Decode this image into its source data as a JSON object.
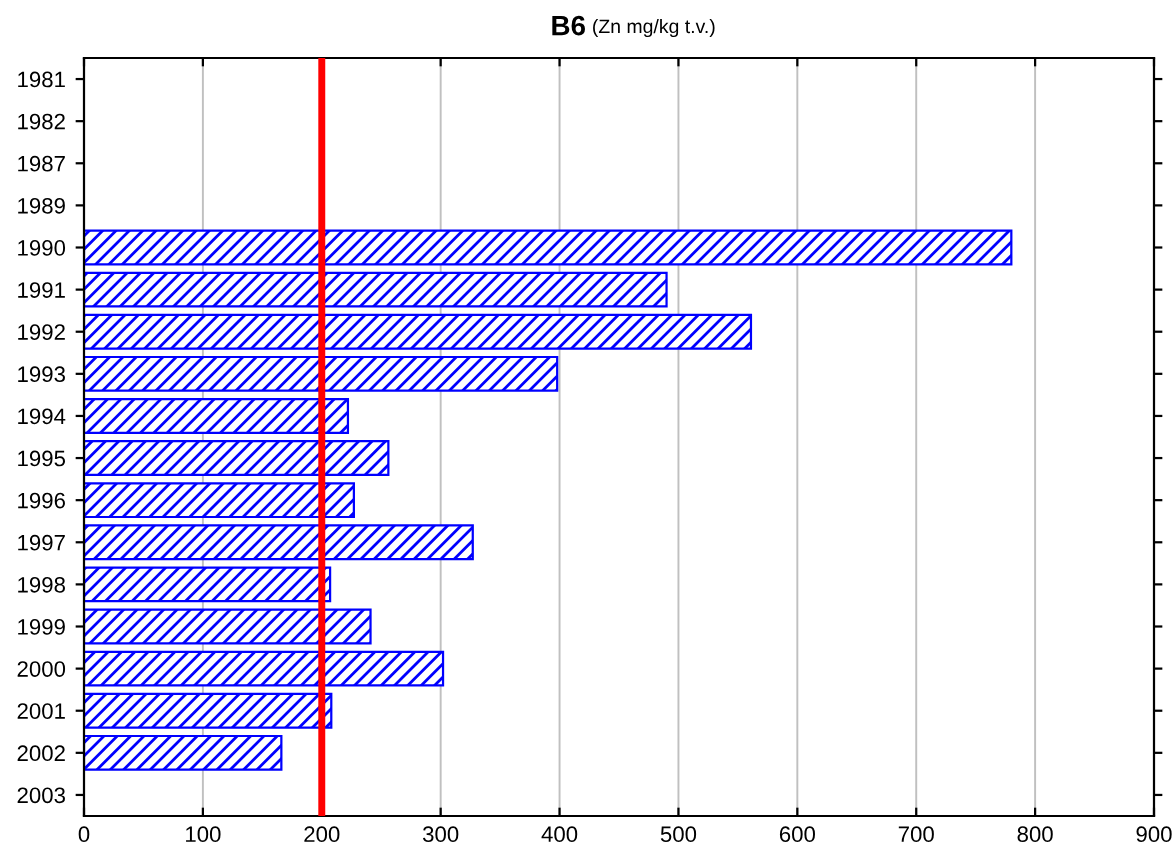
{
  "chart_data": {
    "type": "bar",
    "orientation": "horizontal",
    "title": "B6",
    "subtitle": "(Zn mg/kg t.v.)",
    "categories": [
      "1981",
      "1982",
      "1987",
      "1989",
      "1990",
      "1991",
      "1992",
      "1993",
      "1994",
      "1995",
      "1996",
      "1997",
      "1998",
      "1999",
      "2000",
      "2001",
      "2002",
      "2003"
    ],
    "values": [
      null,
      null,
      null,
      null,
      780,
      490,
      561,
      398,
      222,
      256,
      227,
      327,
      207,
      241,
      302,
      208,
      166,
      null
    ],
    "color": "#0000ff",
    "xlim": [
      0,
      900
    ],
    "xticks": [
      0,
      100,
      200,
      300,
      400,
      500,
      600,
      700,
      800,
      900
    ],
    "grid": "x",
    "ref_lines": [
      {
        "axis": "x",
        "value": 200,
        "color": "#ff0000"
      }
    ]
  }
}
